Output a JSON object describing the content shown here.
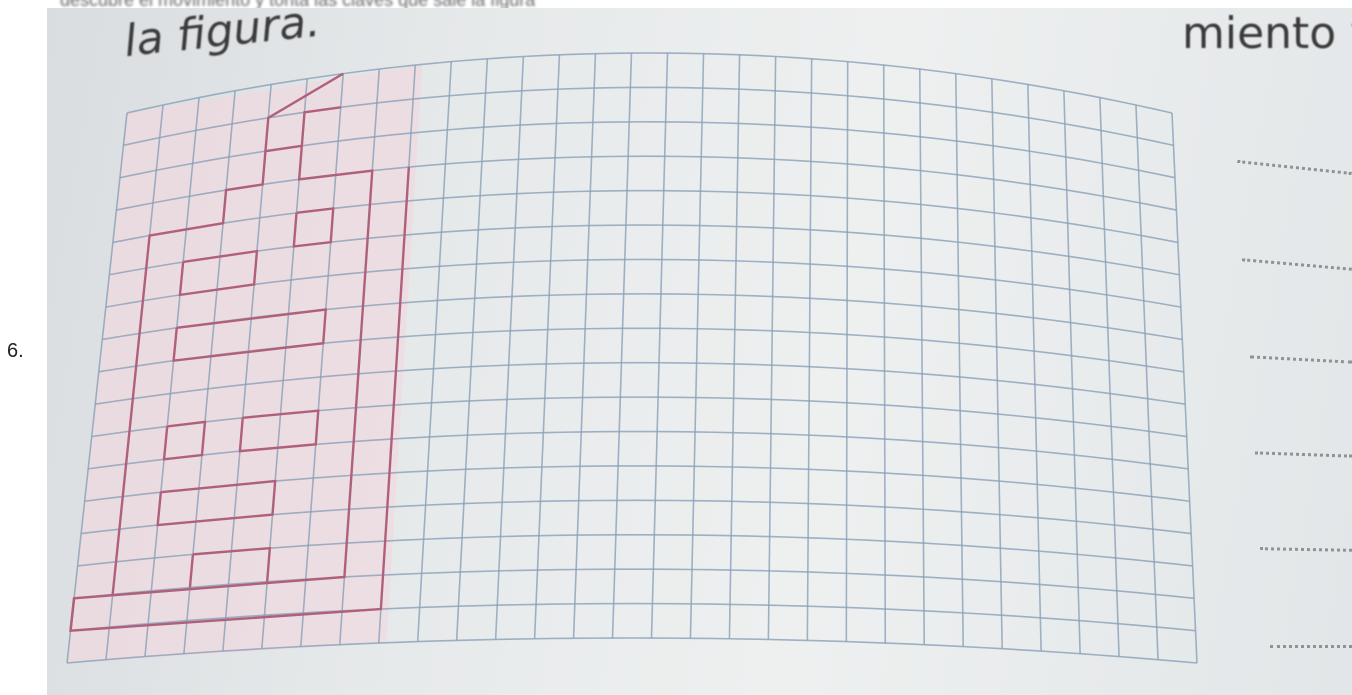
{
  "page": {
    "top_partial_text": "descubre el movimiento y tonta las claves que sale la figura",
    "item_number": "6."
  },
  "photo": {
    "heading_left": "la figura.",
    "heading_right": "miento y",
    "grid": {
      "columns": 29,
      "rows": 17,
      "paper_color": "#e4e8ea",
      "line_color": "#8aa0b8",
      "figure_color": "#b0607a",
      "figure_fill": "#f0d8df"
    },
    "answer_lines": 6
  }
}
